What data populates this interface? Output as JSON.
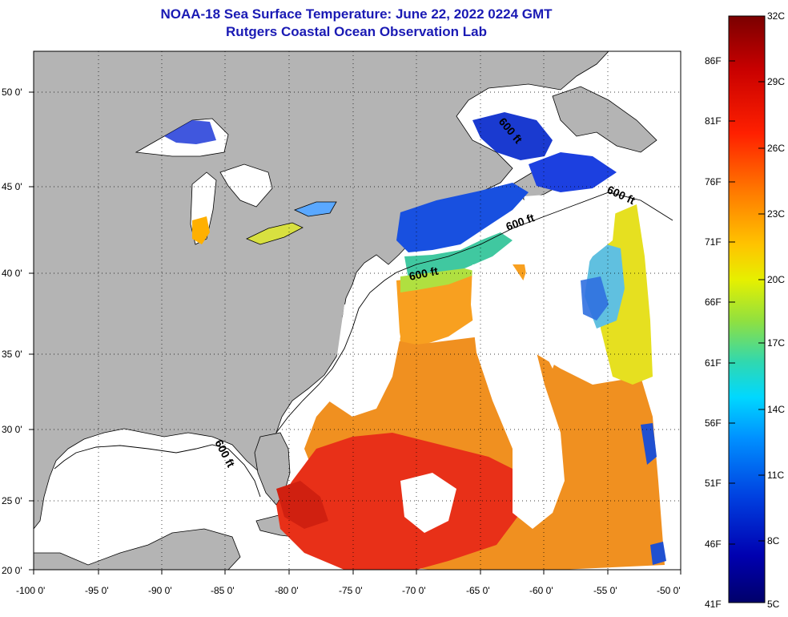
{
  "title_line1": "NOAA-18 Sea Surface Temperature:  June 22, 2022 0224 GMT",
  "title_line2": "Rutgers Coastal Ocean Observation Lab",
  "axes": {
    "lon_ticks": [
      "-100 0'",
      "-95 0'",
      "-90 0'",
      "-85 0'",
      "-80 0'",
      "-75 0'",
      "-70 0'",
      "-65 0'",
      "-60 0'",
      "-55 0'",
      "-50 0'"
    ],
    "lat_ticks": [
      "50 0'",
      "45 0'",
      "40 0'",
      "35 0'",
      "30 0'",
      "25 0'",
      "20 0'"
    ]
  },
  "contour_labels": [
    "600 ft",
    "600 ft",
    "600 ft",
    "600 ft",
    "600 ft"
  ],
  "colorbar": {
    "fahrenheit": [
      "86F",
      "81F",
      "76F",
      "71F",
      "66F",
      "61F",
      "56F",
      "51F",
      "46F",
      "41F"
    ],
    "celsius": [
      "32C",
      "29C",
      "26C",
      "23C",
      "20C",
      "17C",
      "14C",
      "11C",
      "8C",
      "5C"
    ],
    "colors_top_to_bottom": [
      "#7a0000",
      "#c80000",
      "#ff2000",
      "#ff7a00",
      "#ffc400",
      "#e6f000",
      "#90e040",
      "#30d8b0",
      "#00d8ff",
      "#0090ff",
      "#0040e0",
      "#0000b0",
      "#00006a"
    ]
  },
  "colors": {
    "land": "#b4b4b4",
    "cloud": "#ffffff",
    "title": "#1a1ab4"
  }
}
